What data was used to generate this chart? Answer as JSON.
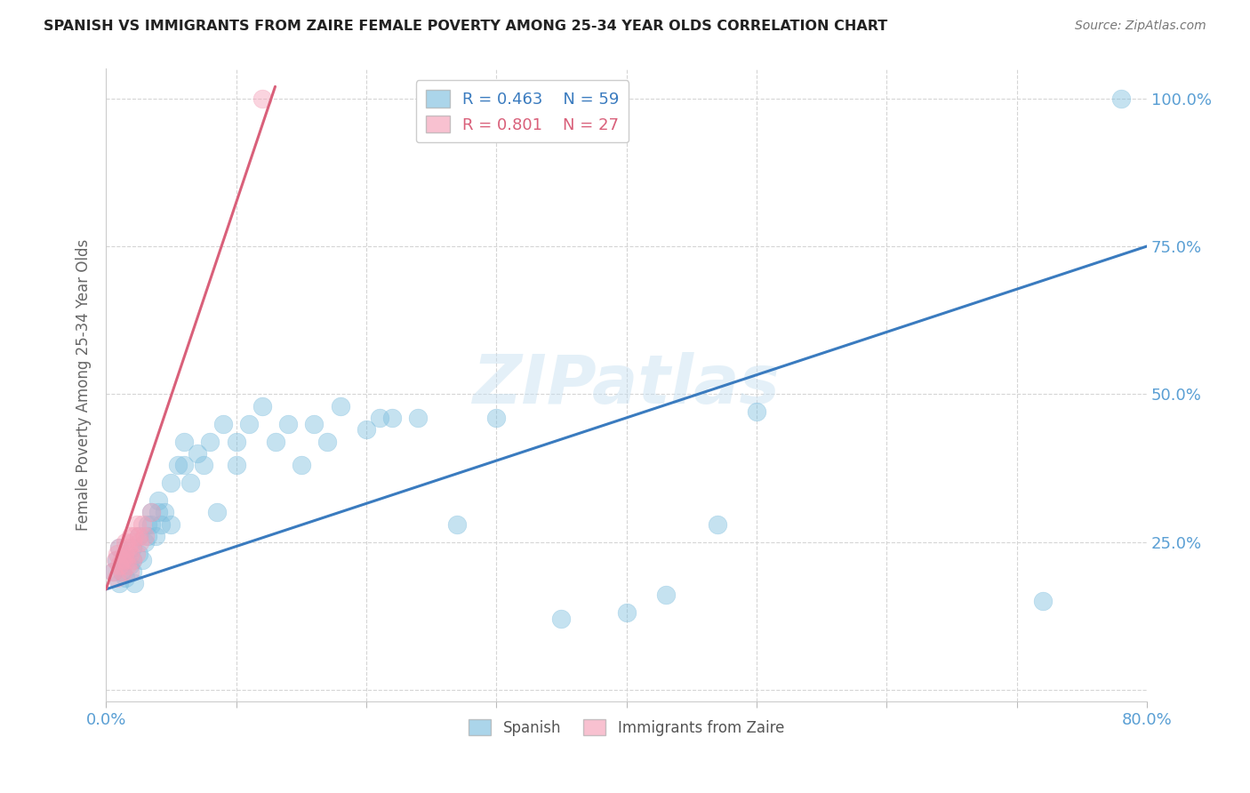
{
  "title": "SPANISH VS IMMIGRANTS FROM ZAIRE FEMALE POVERTY AMONG 25-34 YEAR OLDS CORRELATION CHART",
  "source": "Source: ZipAtlas.com",
  "ylabel": "Female Poverty Among 25-34 Year Olds",
  "watermark": "ZIPatlas",
  "xlim": [
    0.0,
    0.8
  ],
  "ylim": [
    -0.02,
    1.05
  ],
  "xticks": [
    0.0,
    0.1,
    0.2,
    0.3,
    0.4,
    0.5,
    0.6,
    0.7,
    0.8
  ],
  "xticklabels": [
    "0.0%",
    "",
    "",
    "",
    "",
    "",
    "",
    "",
    "80.0%"
  ],
  "ytick_positions": [
    0.0,
    0.25,
    0.5,
    0.75,
    1.0
  ],
  "ytick_labels": [
    "",
    "25.0%",
    "50.0%",
    "75.0%",
    "100.0%"
  ],
  "legend1_r": "0.463",
  "legend1_n": "59",
  "legend2_r": "0.801",
  "legend2_n": "27",
  "blue_color": "#7fbfdf",
  "pink_color": "#f5a0b8",
  "blue_line_color": "#3a7bbf",
  "pink_line_color": "#d9607a",
  "spanish_x": [
    0.005,
    0.008,
    0.01,
    0.01,
    0.012,
    0.015,
    0.015,
    0.018,
    0.02,
    0.02,
    0.02,
    0.022,
    0.025,
    0.025,
    0.028,
    0.03,
    0.032,
    0.032,
    0.035,
    0.035,
    0.038,
    0.04,
    0.04,
    0.042,
    0.045,
    0.05,
    0.05,
    0.055,
    0.06,
    0.06,
    0.065,
    0.07,
    0.075,
    0.08,
    0.085,
    0.09,
    0.1,
    0.1,
    0.11,
    0.12,
    0.13,
    0.14,
    0.15,
    0.16,
    0.17,
    0.18,
    0.2,
    0.21,
    0.22,
    0.24,
    0.27,
    0.3,
    0.35,
    0.4,
    0.43,
    0.47,
    0.5,
    0.72,
    0.78
  ],
  "spanish_y": [
    0.2,
    0.22,
    0.18,
    0.24,
    0.2,
    0.19,
    0.22,
    0.21,
    0.2,
    0.24,
    0.22,
    0.18,
    0.23,
    0.26,
    0.22,
    0.25,
    0.26,
    0.28,
    0.28,
    0.3,
    0.26,
    0.3,
    0.32,
    0.28,
    0.3,
    0.35,
    0.28,
    0.38,
    0.38,
    0.42,
    0.35,
    0.4,
    0.38,
    0.42,
    0.3,
    0.45,
    0.38,
    0.42,
    0.45,
    0.48,
    0.42,
    0.45,
    0.38,
    0.45,
    0.42,
    0.48,
    0.44,
    0.46,
    0.46,
    0.46,
    0.28,
    0.46,
    0.12,
    0.13,
    0.16,
    0.28,
    0.47,
    0.15,
    1.0
  ],
  "zaire_x": [
    0.005,
    0.007,
    0.008,
    0.009,
    0.01,
    0.01,
    0.012,
    0.013,
    0.014,
    0.015,
    0.015,
    0.016,
    0.017,
    0.018,
    0.018,
    0.019,
    0.02,
    0.02,
    0.022,
    0.023,
    0.024,
    0.025,
    0.026,
    0.028,
    0.03,
    0.035,
    0.12
  ],
  "zaire_y": [
    0.2,
    0.22,
    0.19,
    0.23,
    0.21,
    0.24,
    0.22,
    0.2,
    0.23,
    0.22,
    0.25,
    0.21,
    0.24,
    0.2,
    0.23,
    0.26,
    0.25,
    0.22,
    0.26,
    0.23,
    0.28,
    0.26,
    0.25,
    0.28,
    0.26,
    0.3,
    1.0
  ],
  "blue_trendline_x": [
    0.0,
    0.8
  ],
  "blue_trendline_y": [
    0.17,
    0.75
  ],
  "pink_trendline_x": [
    0.0,
    0.13
  ],
  "pink_trendline_y": [
    0.17,
    1.02
  ],
  "grid_color": "#d5d5d5",
  "background_color": "#ffffff"
}
